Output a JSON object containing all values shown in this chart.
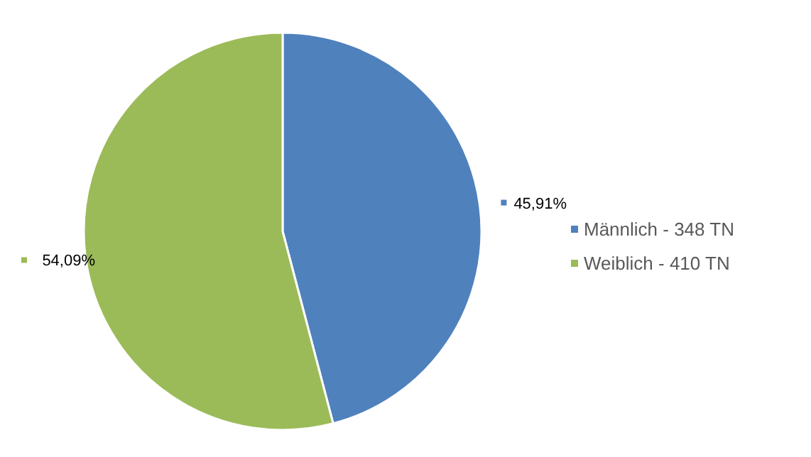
{
  "chart_data": {
    "type": "pie",
    "categories": [
      "Männlich - 348 TN",
      "Weiblich - 410 TN"
    ],
    "values": [
      45.91,
      54.09
    ],
    "colors": [
      "#4f81bd",
      "#9bbb59"
    ],
    "value_labels": [
      "45,91%",
      "54,09%"
    ],
    "legend": "right"
  }
}
